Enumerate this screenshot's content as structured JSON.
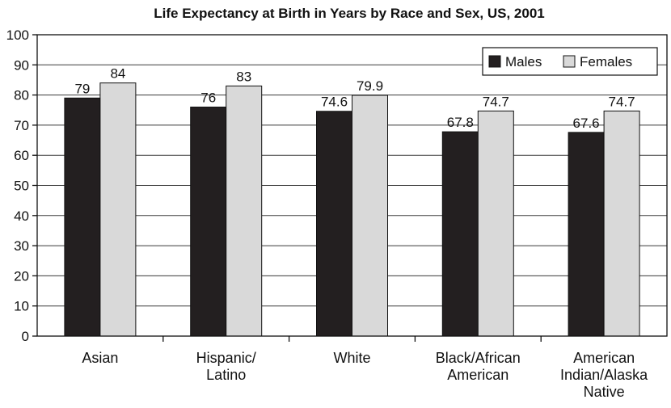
{
  "chart_data": {
    "type": "bar",
    "title": "Life Expectancy at Birth in Years by Race and Sex, US, 2001",
    "xlabel": "",
    "ylabel": "",
    "ylim": [
      0,
      100
    ],
    "yticks": [
      "0",
      "10",
      "20",
      "30",
      "40",
      "50",
      "60",
      "70",
      "80",
      "90",
      "100"
    ],
    "grid": true,
    "legend_position": "top-right",
    "categories": [
      [
        "Asian"
      ],
      [
        "Hispanic/",
        "Latino"
      ],
      [
        "White"
      ],
      [
        "Black/African",
        "American"
      ],
      [
        "American",
        "Indian/Alaska",
        "Native"
      ]
    ],
    "series": [
      {
        "name": "Males",
        "color": "#231f20",
        "values": [
          79,
          76,
          74.6,
          67.8,
          67.6
        ],
        "labels": [
          "79",
          "76",
          "74.6",
          "67.8",
          "67.6"
        ]
      },
      {
        "name": "Females",
        "color": "#d9d9d9",
        "values": [
          84,
          83,
          79.9,
          74.7,
          74.7
        ],
        "labels": [
          "84",
          "83",
          "79.9",
          "74.7",
          "74.7"
        ]
      }
    ]
  }
}
